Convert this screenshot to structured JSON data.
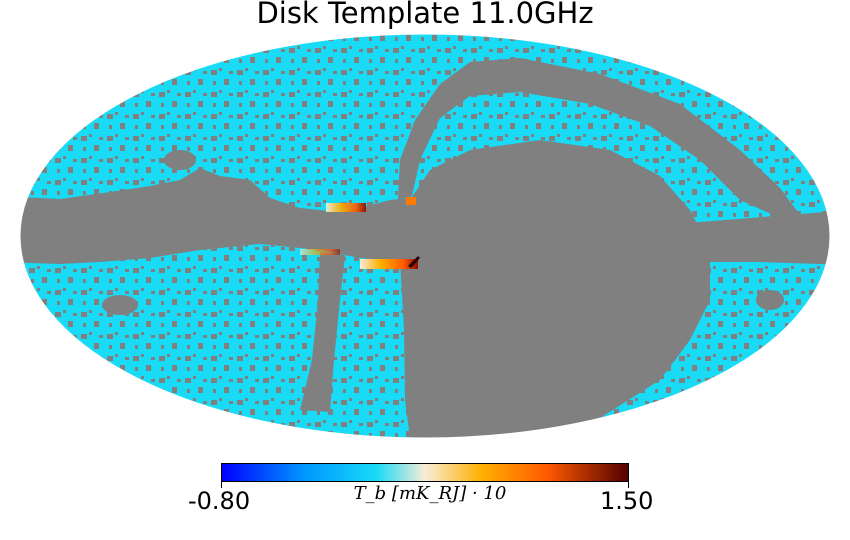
{
  "title": "Disk Template 11.0GHz",
  "colorbar": {
    "min": "-0.80",
    "max": "1.50",
    "label": "T_b [mK_RJ] · 10",
    "colors": [
      "#0000ff",
      "#0095ff",
      "#18daf5",
      "#f8ecd8",
      "#ffb000",
      "#ff5a00",
      "#540000"
    ]
  },
  "map": {
    "projection": "Mollweide",
    "background_color": "#19dbf6",
    "masked_color": "#808080"
  }
}
